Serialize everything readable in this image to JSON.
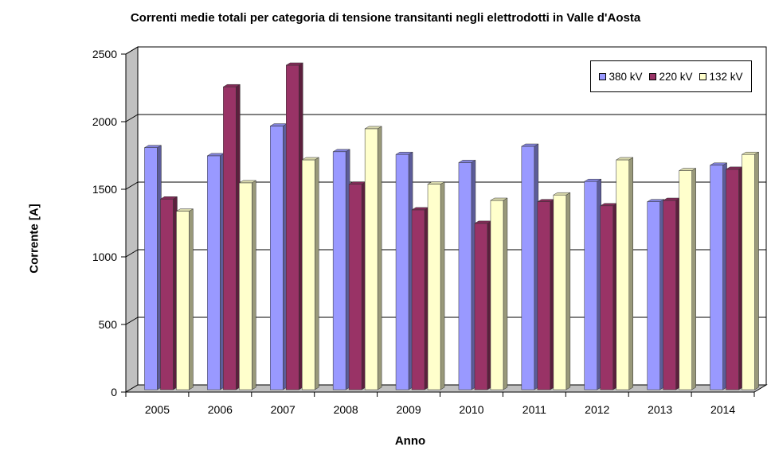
{
  "chart_data": {
    "type": "bar",
    "title": "Correnti medie totali per categoria di tensione transitanti negli elettrodotti in Valle d'Aosta",
    "xlabel": "Anno",
    "ylabel": "Corrente [A]",
    "ylim": [
      0,
      2500
    ],
    "yticks": [
      0,
      500,
      1000,
      1500,
      2000,
      2500
    ],
    "grid": true,
    "legend_position": "top-right",
    "categories": [
      "2005",
      "2006",
      "2007",
      "2008",
      "2009",
      "2010",
      "2011",
      "2012",
      "2013",
      "2014"
    ],
    "series": [
      {
        "name": "380 kV",
        "color": "#9999ff",
        "values": [
          1790,
          1730,
          1950,
          1760,
          1740,
          1680,
          1800,
          1540,
          1390,
          1660
        ]
      },
      {
        "name": "220 kV",
        "color": "#993366",
        "values": [
          1410,
          2240,
          2400,
          1520,
          1330,
          1230,
          1390,
          1360,
          1400,
          1630
        ]
      },
      {
        "name": "132 kV",
        "color": "#ffffcc",
        "values": [
          1320,
          1530,
          1700,
          1930,
          1520,
          1400,
          1440,
          1700,
          1620,
          1740
        ]
      }
    ]
  }
}
